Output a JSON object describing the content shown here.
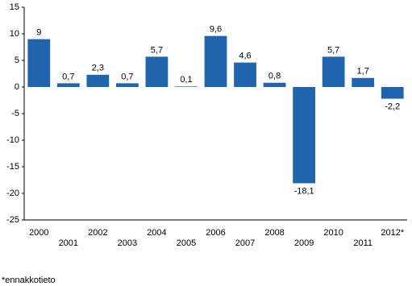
{
  "chart_data": {
    "type": "bar",
    "categories": [
      "2000",
      "2001",
      "2002",
      "2003",
      "2004",
      "2005",
      "2006",
      "2007",
      "2008",
      "2009",
      "2010",
      "2011",
      "2012*"
    ],
    "values": [
      9,
      0.7,
      2.3,
      0.7,
      5.7,
      0.1,
      9.6,
      4.6,
      0.8,
      -18.1,
      5.7,
      1.7,
      -2.2
    ],
    "value_labels": [
      "9",
      "0,7",
      "2,3",
      "0,7",
      "5,7",
      "0,1",
      "9,6",
      "4,6",
      "0,8",
      "-18,1",
      "5,7",
      "1,7",
      "-2,2"
    ],
    "color": "#1f64ad",
    "ylim": [
      -25,
      15
    ],
    "yticks": [
      15,
      10,
      5,
      0,
      -5,
      -10,
      -15,
      -20,
      -25
    ],
    "grid": false,
    "footnote": "*ennakkotieto"
  }
}
